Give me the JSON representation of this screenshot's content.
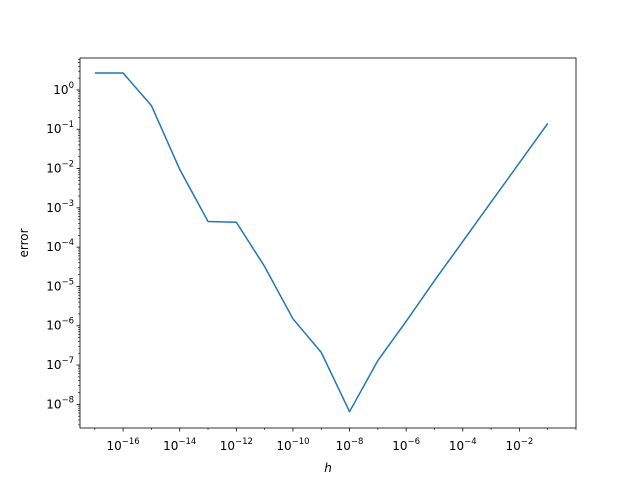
{
  "chart_data": {
    "type": "line",
    "title": "",
    "xlabel": "h",
    "ylabel": "error",
    "xscale": "log",
    "yscale": "log",
    "xlim": [
      3e-18,
      1.0
    ],
    "ylim": [
      2.5e-09,
      6.5
    ],
    "grid": false,
    "legend": "none",
    "series": [
      {
        "color": "#1f77b4",
        "x": [
          1e-17,
          1e-16,
          1e-15,
          1e-14,
          1e-13,
          1e-12,
          1e-11,
          1e-10,
          1e-09,
          1e-08,
          1e-07,
          1e-06,
          1e-05,
          0.0001,
          0.001,
          0.01,
          0.1
        ],
        "y": [
          2.7,
          2.7,
          0.4,
          0.0095,
          0.00045,
          0.00043,
          3.2e-05,
          1.5e-06,
          2.1e-07,
          6.5e-09,
          1.3e-07,
          1.3e-06,
          1.4e-05,
          0.00014,
          0.0014,
          0.014,
          0.14
        ]
      }
    ],
    "x_ticks": [
      {
        "value": 1e-16,
        "base": "10",
        "exp": "−16"
      },
      {
        "value": 1e-14,
        "base": "10",
        "exp": "−14"
      },
      {
        "value": 1e-12,
        "base": "10",
        "exp": "−12"
      },
      {
        "value": 1e-10,
        "base": "10",
        "exp": "−10"
      },
      {
        "value": 1e-08,
        "base": "10",
        "exp": "−8"
      },
      {
        "value": 1e-06,
        "base": "10",
        "exp": "−6"
      },
      {
        "value": 0.0001,
        "base": "10",
        "exp": "−4"
      },
      {
        "value": 0.01,
        "base": "10",
        "exp": "−2"
      }
    ],
    "y_ticks": [
      {
        "value": 1e-08,
        "base": "10",
        "exp": "−8"
      },
      {
        "value": 1e-07,
        "base": "10",
        "exp": "−7"
      },
      {
        "value": 1e-06,
        "base": "10",
        "exp": "−6"
      },
      {
        "value": 1e-05,
        "base": "10",
        "exp": "−5"
      },
      {
        "value": 0.0001,
        "base": "10",
        "exp": "−4"
      },
      {
        "value": 0.001,
        "base": "10",
        "exp": "−3"
      },
      {
        "value": 0.01,
        "base": "10",
        "exp": "−2"
      },
      {
        "value": 0.1,
        "base": "10",
        "exp": "−1"
      },
      {
        "value": 1,
        "base": "10",
        "exp": "0"
      }
    ]
  }
}
